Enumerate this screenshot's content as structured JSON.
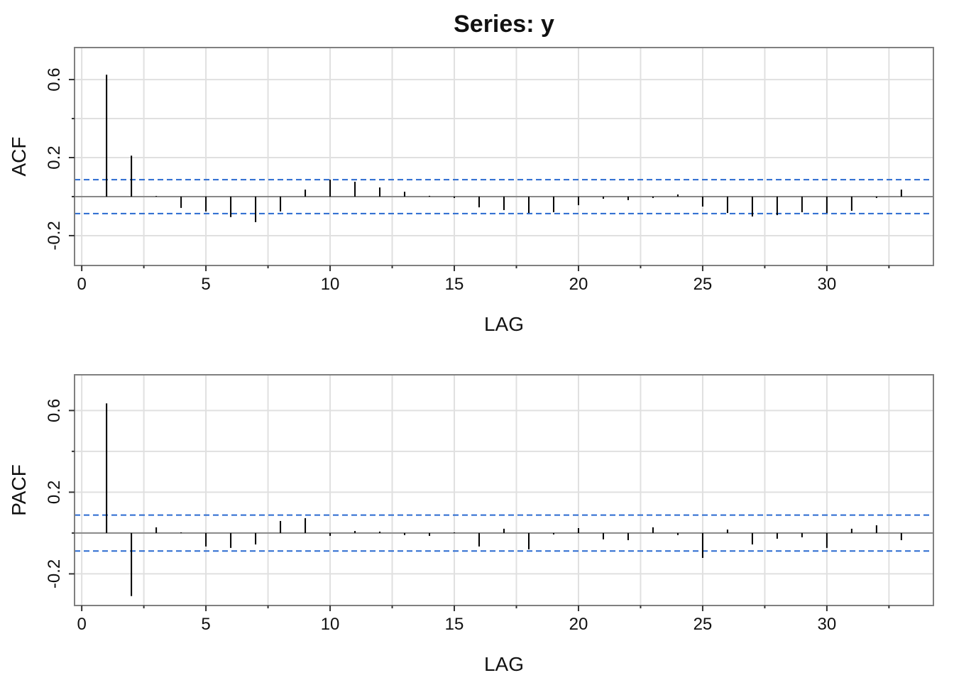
{
  "chart_data": [
    {
      "type": "stem",
      "title": "Series:  y",
      "ylabel": "ACF",
      "xlabel": "LAG",
      "x": [
        1,
        2,
        3,
        4,
        5,
        6,
        7,
        8,
        9,
        10,
        11,
        12,
        13,
        14,
        15,
        16,
        17,
        18,
        19,
        20,
        21,
        22,
        23,
        24,
        25,
        26,
        27,
        28,
        29,
        30,
        31,
        32,
        33
      ],
      "values": [
        0.625,
        0.21,
        0.003,
        -0.058,
        -0.076,
        -0.105,
        -0.131,
        -0.076,
        0.036,
        0.087,
        0.076,
        0.047,
        0.025,
        0.004,
        -0.007,
        -0.055,
        -0.069,
        -0.084,
        -0.08,
        -0.044,
        -0.011,
        -0.018,
        -0.007,
        0.011,
        -0.051,
        -0.084,
        -0.102,
        -0.095,
        -0.08,
        -0.084,
        -0.073,
        -0.007,
        0.036
      ],
      "color": "#000000",
      "ci": [
        -0.087,
        0.087
      ],
      "ci_color": "#2a6ad0",
      "xlim": [
        -0.29,
        34.29
      ],
      "xticks": [
        0,
        5,
        10,
        15,
        20,
        25,
        30
      ],
      "xminor": [
        2.5,
        7.5,
        12.5,
        17.5,
        22.5,
        27.5,
        32.5
      ],
      "ylim": [
        -0.353,
        0.764
      ],
      "yticks": [
        -0.2,
        0.2,
        0.6
      ],
      "yminor": [
        0,
        0.4
      ],
      "grid": true
    },
    {
      "type": "stem",
      "ylabel": "PACF",
      "xlabel": "LAG",
      "x": [
        1,
        2,
        3,
        4,
        5,
        6,
        7,
        8,
        9,
        10,
        11,
        12,
        13,
        14,
        15,
        16,
        17,
        18,
        19,
        20,
        21,
        22,
        23,
        24,
        25,
        26,
        27,
        28,
        29,
        30,
        31,
        32,
        33
      ],
      "values": [
        0.635,
        -0.309,
        0.028,
        0.003,
        -0.066,
        -0.073,
        -0.056,
        0.059,
        0.073,
        -0.014,
        0.01,
        0.007,
        -0.01,
        -0.014,
        0.003,
        -0.066,
        0.021,
        -0.08,
        -0.007,
        0.024,
        -0.031,
        -0.035,
        0.028,
        -0.01,
        -0.122,
        0.017,
        -0.056,
        -0.028,
        -0.021,
        -0.073,
        0.021,
        0.038,
        -0.035
      ],
      "color": "#000000",
      "ci": [
        -0.088,
        0.088
      ],
      "ci_color": "#2a6ad0",
      "xlim": [
        -0.29,
        34.29
      ],
      "xticks": [
        0,
        5,
        10,
        15,
        20,
        25,
        30
      ],
      "xminor": [
        2.5,
        7.5,
        12.5,
        17.5,
        22.5,
        27.5,
        32.5
      ],
      "ylim": [
        -0.355,
        0.775
      ],
      "yticks": [
        -0.2,
        0.2,
        0.6
      ],
      "yminor": [
        0,
        0.4
      ],
      "grid": true
    }
  ]
}
